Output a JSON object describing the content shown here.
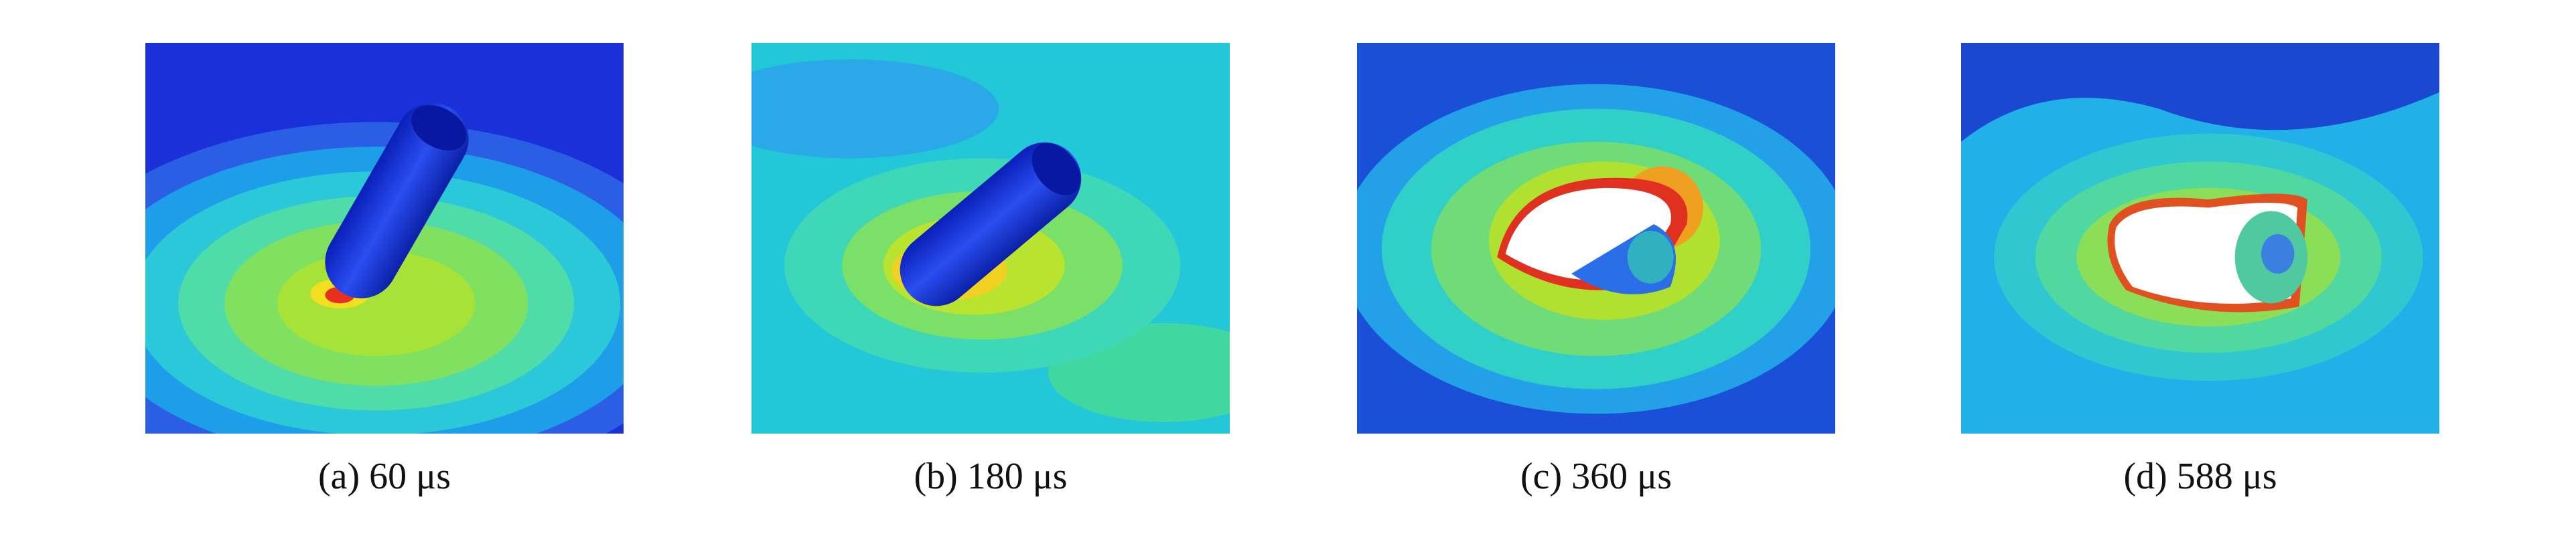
{
  "panels": [
    {
      "caption": "(a) 60 μs"
    },
    {
      "caption": "(b) 180 μs"
    },
    {
      "caption": "(c) 360 μs"
    },
    {
      "caption": "(d) 588 μs"
    }
  ]
}
